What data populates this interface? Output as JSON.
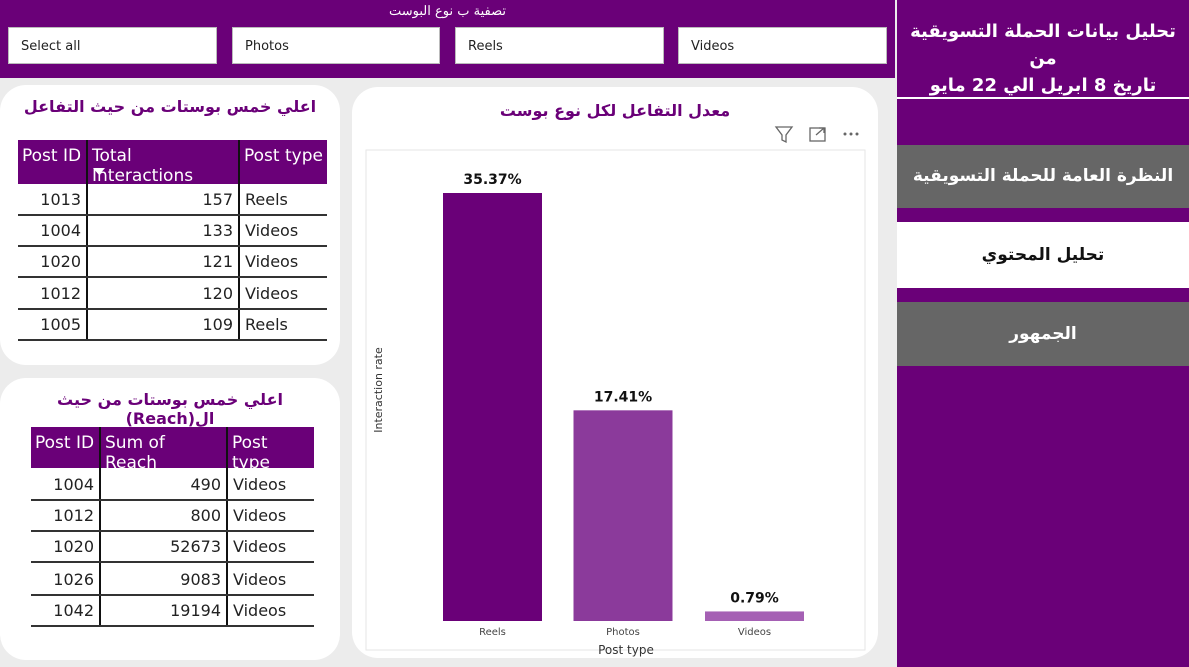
{
  "filter": {
    "title": "تصفية ب نوع البوست",
    "options": [
      "Select all",
      "Photos",
      "Reels",
      "Videos"
    ]
  },
  "sidebar": {
    "title": [
      "تحليل بيانات الحملة التسويقية من",
      "تاريخ 8 ابريل الي 22 مايو"
    ],
    "nav": [
      "النظرة العامة للحملة التسويقية",
      "تحليل المحتوي",
      "الجمهور"
    ]
  },
  "table1": {
    "title": "اعلي خمس بوستات من حيث التفاعل",
    "columns": [
      "Post ID",
      "Total Interactions",
      "Post type"
    ],
    "rows": [
      [
        1013,
        157,
        "Reels"
      ],
      [
        1004,
        133,
        "Videos"
      ],
      [
        1020,
        121,
        "Videos"
      ],
      [
        1012,
        120,
        "Videos"
      ],
      [
        1005,
        109,
        "Reels"
      ]
    ]
  },
  "table2": {
    "title": "اعلي خمس بوستات من حيث ال(Reach)",
    "columns": [
      "Post ID",
      "Sum of Reach",
      "Post type"
    ],
    "rows": [
      [
        1004,
        490,
        "Videos"
      ],
      [
        1012,
        800,
        "Videos"
      ],
      [
        1020,
        52673,
        "Videos"
      ],
      [
        1026,
        9083,
        "Videos"
      ],
      [
        1042,
        19194,
        "Videos"
      ]
    ]
  },
  "chart_data": {
    "type": "bar",
    "title": "معدل التفاعل لكل نوع بوست",
    "x_label": "Post type",
    "y_label": "Interaction rate",
    "categories": [
      "Reels",
      "Photos",
      "Videos"
    ],
    "values": [
      35.37,
      17.41,
      0.79
    ],
    "value_labels": [
      "35.37%",
      "17.41%",
      "0.79%"
    ],
    "colors": [
      "#6a0078",
      "#8b3a9b",
      "#a560b4"
    ]
  }
}
